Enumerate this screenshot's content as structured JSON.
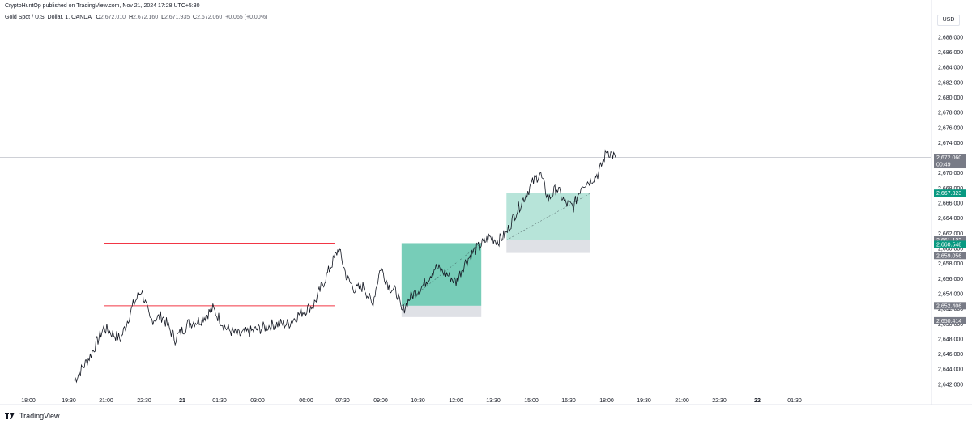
{
  "header": {
    "publisher": "CryptoHuntOp published on TradingView.com, Nov 21, 2024 17:28 UTC+5:30",
    "symbol": "Gold Spot / U.S. Dollar, 1, OANDA",
    "open_label": "O",
    "open": "2,672.010",
    "high_label": "H",
    "high": "2,672.160",
    "low_label": "L",
    "low": "2,671.935",
    "close_label": "C",
    "close": "2,672.060",
    "change": "+0.065 (+0.00%)"
  },
  "currency": "USD",
  "footer": {
    "brand": "TradingView",
    "logo_icon": "tradingview-logo-icon"
  },
  "colors": {
    "candle": "#131722",
    "profit_zone": "#5fc4ab",
    "profit_zone_light": "#b6e3d9",
    "stop_zone": "#d1d4dc",
    "range_box": "#fdecec",
    "range_line": "#f23645",
    "teal_tag": "#089981",
    "gray_tag": "#787b86"
  },
  "chart_data": {
    "type": "line",
    "title": "",
    "xlabel": "",
    "ylabel": "",
    "ylim": [
      2640.7,
      2689.7
    ],
    "x_ticks": [
      "18:00",
      "19:30",
      "21:00",
      "22:30",
      "21",
      "01:30",
      "03:00",
      "06:00",
      "07:30",
      "09:00",
      "10:30",
      "12:00",
      "13:30",
      "15:00",
      "16:30",
      "18:00",
      "19:30",
      "21:00",
      "22:30",
      "22",
      "01:30"
    ],
    "x_ticks_bold": [
      "21",
      "22"
    ],
    "y_ticks": [
      "2,642.000",
      "2,644.000",
      "2,646.000",
      "2,648.000",
      "2,650.000",
      "2,652.000",
      "2,654.000",
      "2,656.000",
      "2,658.000",
      "2,660.000",
      "2,662.000",
      "2,664.000",
      "2,666.000",
      "2,668.000",
      "2,670.000",
      "2,672.000",
      "2,674.000",
      "2,676.000",
      "2,678.000",
      "2,680.000",
      "2,682.000",
      "2,684.000",
      "2,686.000",
      "2,688.000"
    ],
    "x_index": [
      "19:50",
      "20:30",
      "21:00",
      "21:40",
      "22:10",
      "22:30",
      "22:50",
      "23:20",
      "23:50",
      "00:20",
      "00:50",
      "01:20",
      "01:50",
      "02:20",
      "02:50",
      "03:20",
      "03:50",
      "04:20",
      "04:50",
      "05:20",
      "05:40",
      "06:00",
      "06:20",
      "06:40",
      "07:00",
      "07:20",
      "07:40",
      "08:00",
      "08:20",
      "08:40",
      "08:50",
      "09:10",
      "09:40",
      "10:10",
      "10:40",
      "11:00",
      "11:20",
      "11:40",
      "12:00",
      "12:20",
      "12:40",
      "13:00",
      "13:20",
      "13:40",
      "14:00",
      "14:20",
      "14:40",
      "15:00",
      "15:20",
      "15:40",
      "16:00",
      "16:20",
      "16:40",
      "17:00",
      "17:20"
    ],
    "series": [
      {
        "values": [
          2642.5,
          2646.0,
          2649.5,
          2648.0,
          2652.5,
          2654.5,
          2650.5,
          2651.0,
          2648.0,
          2650.0,
          2650.5,
          2652.0,
          2649.5,
          2648.5,
          2649.0,
          2649.5,
          2650.0,
          2650.0,
          2651.5,
          2652.5,
          2655.0,
          2657.5,
          2660.0,
          2656.0,
          2654.5,
          2655.0,
          2652.5,
          2657.5,
          2655.0,
          2654.0,
          2651.5,
          2653.5,
          2655.0,
          2657.5,
          2656.5,
          2655.5,
          2658.0,
          2659.5,
          2660.5,
          2661.5,
          2661.0,
          2662.0,
          2664.5,
          2666.5,
          2668.5,
          2670.0,
          2666.5,
          2668.0,
          2666.0,
          2665.5,
          2668.5,
          2669.0,
          2670.0,
          2673.0,
          2672.06
        ]
      }
    ],
    "horizontal_lines": [
      {
        "y": 2672.06,
        "color": "#b2b5be"
      }
    ],
    "range_box": {
      "x_start": "06:10",
      "x_end": "21:00",
      "y_top": 2660.7,
      "y_bottom": 2652.4
    },
    "positions": [
      {
        "name": "long-1",
        "x_start": "08:50",
        "x_end": "12:00",
        "entry": 2652.4,
        "target": 2660.7,
        "stop": 2650.9,
        "target_color": "#5fc4ab"
      },
      {
        "name": "long-2",
        "x_start": "13:00",
        "x_end": "16:20",
        "entry": 2661.1,
        "target": 2667.3,
        "stop": 2659.4,
        "target_color": "#5fc4ab"
      }
    ],
    "price_tags": [
      {
        "value": "2,672.060",
        "sub": "00:49",
        "y": 2672.06,
        "color": "#787b86"
      },
      {
        "value": "2,667.323",
        "y": 2667.323,
        "color": "#089981"
      },
      {
        "value": "2,661.123",
        "y": 2661.123,
        "color": "#787b86"
      },
      {
        "value": "2,660.548",
        "y": 2660.548,
        "color": "#089981"
      },
      {
        "value": "2,659.056",
        "y": 2659.056,
        "color": "#787b86"
      },
      {
        "value": "2,652.406",
        "y": 2652.406,
        "color": "#787b86"
      },
      {
        "value": "2,650.414",
        "y": 2650.414,
        "color": "#787b86"
      }
    ]
  }
}
